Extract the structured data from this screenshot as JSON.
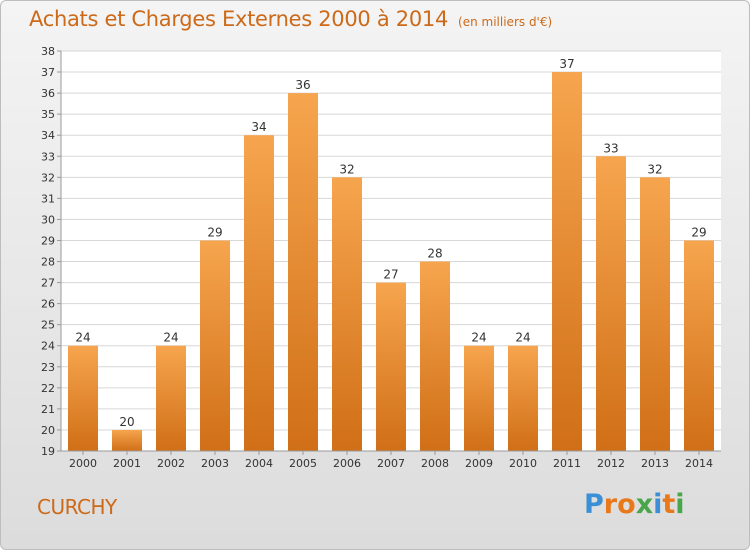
{
  "title": "Achats et Charges Externes 2000 à 2014",
  "subtitle": "(en milliers d'€)",
  "commune": "CURCHY",
  "logo": {
    "text": "Proxiti",
    "letter_colors": [
      "#3a8fd6",
      "#e8791b",
      "#e8791b",
      "#4aa64a",
      "#3a8fd6",
      "#e8791b",
      "#4aa64a"
    ]
  },
  "colors": {
    "title": "#cc6a1a",
    "bar_light": "#f6a54e",
    "bar_dark": "#d06f17",
    "grid": "#d7d7d7",
    "axis": "#9a9a9a",
    "text": "#333333"
  },
  "chart_data": {
    "type": "bar",
    "categories": [
      "2000",
      "2001",
      "2002",
      "2003",
      "2004",
      "2005",
      "2006",
      "2007",
      "2008",
      "2009",
      "2010",
      "2011",
      "2012",
      "2013",
      "2014"
    ],
    "values": [
      24,
      20,
      24,
      29,
      34,
      36,
      32,
      27,
      28,
      24,
      24,
      37,
      33,
      32,
      29
    ],
    "data_labels": [
      "24",
      "20",
      "24",
      "29",
      "34",
      "36",
      "32",
      "27",
      "28",
      "24",
      "24",
      "37",
      "33",
      "32",
      "29"
    ],
    "ylim": [
      19,
      38
    ],
    "yticks": [
      "19",
      "20",
      "21",
      "22",
      "23",
      "24",
      "25",
      "26",
      "27",
      "28",
      "29",
      "30",
      "31",
      "32",
      "33",
      "34",
      "35",
      "36",
      "37",
      "38"
    ],
    "grid": true,
    "legend": "none"
  }
}
